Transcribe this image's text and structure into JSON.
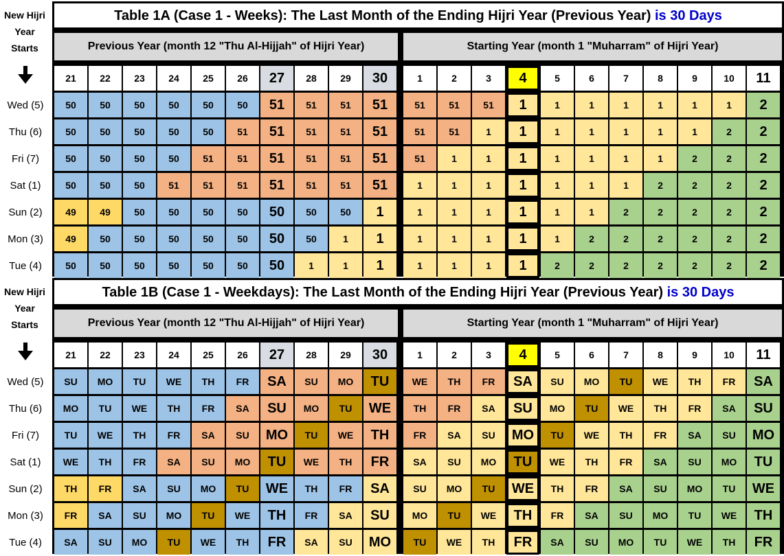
{
  "side": {
    "label_a": [
      "New Hijri",
      "Year",
      "Starts"
    ],
    "label_b": [
      "New Hijri",
      "Year",
      "Starts"
    ],
    "days": [
      "Wed (5)",
      "Thu (6)",
      "Fri (7)",
      "Sat (1)",
      "Sun (2)",
      "Mon (3)",
      "Tue (4)"
    ]
  },
  "table_a": {
    "title": "Table 1A (Case 1 - Weeks): The Last Month of the Ending Hijri Year (Previous Year)",
    "title_highlight": "is 30 Days",
    "prev_header": "Previous Year (month 12 \"Thu Al-Hijjah\" of Hijri Year)",
    "start_header": "Starting Year (month 1 \"Muharram\" of Hijri Year)",
    "cols": [
      "21",
      "22",
      "23",
      "24",
      "25",
      "26",
      "27",
      "28",
      "29",
      "30",
      "1",
      "2",
      "3",
      "4",
      "5",
      "6",
      "7",
      "8",
      "9",
      "10",
      "11"
    ],
    "rows": [
      [
        "50",
        "50",
        "50",
        "50",
        "50",
        "50",
        "51",
        "51",
        "51",
        "51",
        "51",
        "51",
        "51",
        "1",
        "1",
        "1",
        "1",
        "1",
        "1",
        "1",
        "2"
      ],
      [
        "50",
        "50",
        "50",
        "50",
        "50",
        "51",
        "51",
        "51",
        "51",
        "51",
        "51",
        "51",
        "1",
        "1",
        "1",
        "1",
        "1",
        "1",
        "1",
        "2",
        "2"
      ],
      [
        "50",
        "50",
        "50",
        "50",
        "51",
        "51",
        "51",
        "51",
        "51",
        "51",
        "51",
        "1",
        "1",
        "1",
        "1",
        "1",
        "1",
        "1",
        "2",
        "2",
        "2"
      ],
      [
        "50",
        "50",
        "50",
        "51",
        "51",
        "51",
        "51",
        "51",
        "51",
        "51",
        "1",
        "1",
        "1",
        "1",
        "1",
        "1",
        "1",
        "2",
        "2",
        "2",
        "2"
      ],
      [
        "49",
        "49",
        "50",
        "50",
        "50",
        "50",
        "50",
        "50",
        "50",
        "1",
        "1",
        "1",
        "1",
        "1",
        "1",
        "1",
        "2",
        "2",
        "2",
        "2",
        "2"
      ],
      [
        "49",
        "50",
        "50",
        "50",
        "50",
        "50",
        "50",
        "50",
        "1",
        "1",
        "1",
        "1",
        "1",
        "1",
        "1",
        "2",
        "2",
        "2",
        "2",
        "2",
        "2"
      ],
      [
        "50",
        "50",
        "50",
        "50",
        "50",
        "50",
        "50",
        "1",
        "1",
        "1",
        "1",
        "1",
        "1",
        "1",
        "2",
        "2",
        "2",
        "2",
        "2",
        "2",
        "2"
      ]
    ],
    "colors": [
      [
        "B",
        "B",
        "B",
        "B",
        "B",
        "B",
        "O",
        "O",
        "O",
        "O",
        "O",
        "O",
        "O",
        "Y",
        "Y",
        "Y",
        "Y",
        "Y",
        "Y",
        "Y",
        "G"
      ],
      [
        "B",
        "B",
        "B",
        "B",
        "B",
        "O",
        "O",
        "O",
        "O",
        "O",
        "O",
        "O",
        "Y",
        "Y",
        "Y",
        "Y",
        "Y",
        "Y",
        "Y",
        "G",
        "G"
      ],
      [
        "B",
        "B",
        "B",
        "B",
        "O",
        "O",
        "O",
        "O",
        "O",
        "O",
        "O",
        "Y",
        "Y",
        "Y",
        "Y",
        "Y",
        "Y",
        "Y",
        "G",
        "G",
        "G"
      ],
      [
        "B",
        "B",
        "B",
        "O",
        "O",
        "O",
        "O",
        "O",
        "O",
        "O",
        "Y",
        "Y",
        "Y",
        "Y",
        "Y",
        "Y",
        "Y",
        "G",
        "G",
        "G",
        "G"
      ],
      [
        "D",
        "D",
        "B",
        "B",
        "B",
        "B",
        "B",
        "B",
        "B",
        "Y",
        "Y",
        "Y",
        "Y",
        "Y",
        "Y",
        "Y",
        "G",
        "G",
        "G",
        "G",
        "G"
      ],
      [
        "D",
        "B",
        "B",
        "B",
        "B",
        "B",
        "B",
        "B",
        "Y",
        "Y",
        "Y",
        "Y",
        "Y",
        "Y",
        "Y",
        "G",
        "G",
        "G",
        "G",
        "G",
        "G"
      ],
      [
        "B",
        "B",
        "B",
        "B",
        "B",
        "B",
        "B",
        "Y",
        "Y",
        "Y",
        "Y",
        "Y",
        "Y",
        "Y",
        "G",
        "G",
        "G",
        "G",
        "G",
        "G",
        "G"
      ]
    ]
  },
  "table_b": {
    "title": "Table 1B (Case 1 - Weekdays): The Last Month of the Ending Hijri Year (Previous Year)",
    "title_highlight": "is 30 Days",
    "prev_header": "Previous Year (month 12 \"Thu Al-Hijjah\" of Hijri Year)",
    "start_header": "Starting Year (month 1 \"Muharram\" of Hijri Year)",
    "cols": [
      "21",
      "22",
      "23",
      "24",
      "25",
      "26",
      "27",
      "28",
      "29",
      "30",
      "1",
      "2",
      "3",
      "4",
      "5",
      "6",
      "7",
      "8",
      "9",
      "10",
      "11"
    ],
    "rows": [
      [
        "SU",
        "MO",
        "TU",
        "WE",
        "TH",
        "FR",
        "SA",
        "SU",
        "MO",
        "TU",
        "WE",
        "TH",
        "FR",
        "SA",
        "SU",
        "MO",
        "TU",
        "WE",
        "TH",
        "FR",
        "SA"
      ],
      [
        "MO",
        "TU",
        "WE",
        "TH",
        "FR",
        "SA",
        "SU",
        "MO",
        "TU",
        "WE",
        "TH",
        "FR",
        "SA",
        "SU",
        "MO",
        "TU",
        "WE",
        "TH",
        "FR",
        "SA",
        "SU"
      ],
      [
        "TU",
        "WE",
        "TH",
        "FR",
        "SA",
        "SU",
        "MO",
        "TU",
        "WE",
        "TH",
        "FR",
        "SA",
        "SU",
        "MO",
        "TU",
        "WE",
        "TH",
        "FR",
        "SA",
        "SU",
        "MO"
      ],
      [
        "WE",
        "TH",
        "FR",
        "SA",
        "SU",
        "MO",
        "TU",
        "WE",
        "TH",
        "FR",
        "SA",
        "SU",
        "MO",
        "TU",
        "WE",
        "TH",
        "FR",
        "SA",
        "SU",
        "MO",
        "TU"
      ],
      [
        "TH",
        "FR",
        "SA",
        "SU",
        "MO",
        "TU",
        "WE",
        "TH",
        "FR",
        "SA",
        "SU",
        "MO",
        "TU",
        "WE",
        "TH",
        "FR",
        "SA",
        "SU",
        "MO",
        "TU",
        "WE"
      ],
      [
        "FR",
        "SA",
        "SU",
        "MO",
        "TU",
        "WE",
        "TH",
        "FR",
        "SA",
        "SU",
        "MO",
        "TU",
        "WE",
        "TH",
        "FR",
        "SA",
        "SU",
        "MO",
        "TU",
        "WE",
        "TH"
      ],
      [
        "SA",
        "SU",
        "MO",
        "TU",
        "WE",
        "TH",
        "FR",
        "SA",
        "SU",
        "MO",
        "TU",
        "WE",
        "TH",
        "FR",
        "SA",
        "SU",
        "MO",
        "TU",
        "WE",
        "TH",
        "FR"
      ]
    ],
    "colors": [
      [
        "B",
        "B",
        "B",
        "B",
        "B",
        "B",
        "O",
        "O",
        "O",
        "K",
        "O",
        "O",
        "O",
        "Y",
        "Y",
        "Y",
        "K",
        "Y",
        "Y",
        "Y",
        "G"
      ],
      [
        "B",
        "B",
        "B",
        "B",
        "B",
        "O",
        "O",
        "O",
        "K",
        "O",
        "O",
        "O",
        "Y",
        "Y",
        "Y",
        "K",
        "Y",
        "Y",
        "Y",
        "G",
        "G"
      ],
      [
        "B",
        "B",
        "B",
        "B",
        "O",
        "O",
        "O",
        "K",
        "O",
        "O",
        "O",
        "Y",
        "Y",
        "Y",
        "K",
        "Y",
        "Y",
        "Y",
        "G",
        "G",
        "G"
      ],
      [
        "B",
        "B",
        "B",
        "O",
        "O",
        "O",
        "K",
        "O",
        "O",
        "O",
        "Y",
        "Y",
        "Y",
        "K",
        "Y",
        "Y",
        "Y",
        "G",
        "G",
        "G",
        "G"
      ],
      [
        "D",
        "D",
        "B",
        "B",
        "B",
        "K",
        "B",
        "B",
        "B",
        "Y",
        "Y",
        "Y",
        "K",
        "Y",
        "Y",
        "Y",
        "G",
        "G",
        "G",
        "G",
        "G"
      ],
      [
        "D",
        "B",
        "B",
        "B",
        "K",
        "B",
        "B",
        "B",
        "Y",
        "Y",
        "Y",
        "K",
        "Y",
        "Y",
        "Y",
        "G",
        "G",
        "G",
        "G",
        "G",
        "G"
      ],
      [
        "B",
        "B",
        "B",
        "K",
        "B",
        "B",
        "B",
        "Y",
        "Y",
        "Y",
        "K",
        "Y",
        "Y",
        "Y",
        "G",
        "G",
        "G",
        "G",
        "G",
        "G",
        "G"
      ]
    ]
  },
  "palette": {
    "B": "#9dc3e6",
    "O": "#f4b183",
    "Y": "#ffe699",
    "G": "#a9d18e",
    "D": "#ffd966",
    "K": "#bf9000",
    "title_highlight": "#0000cc",
    "start_col_highlight": "#ffff00"
  }
}
